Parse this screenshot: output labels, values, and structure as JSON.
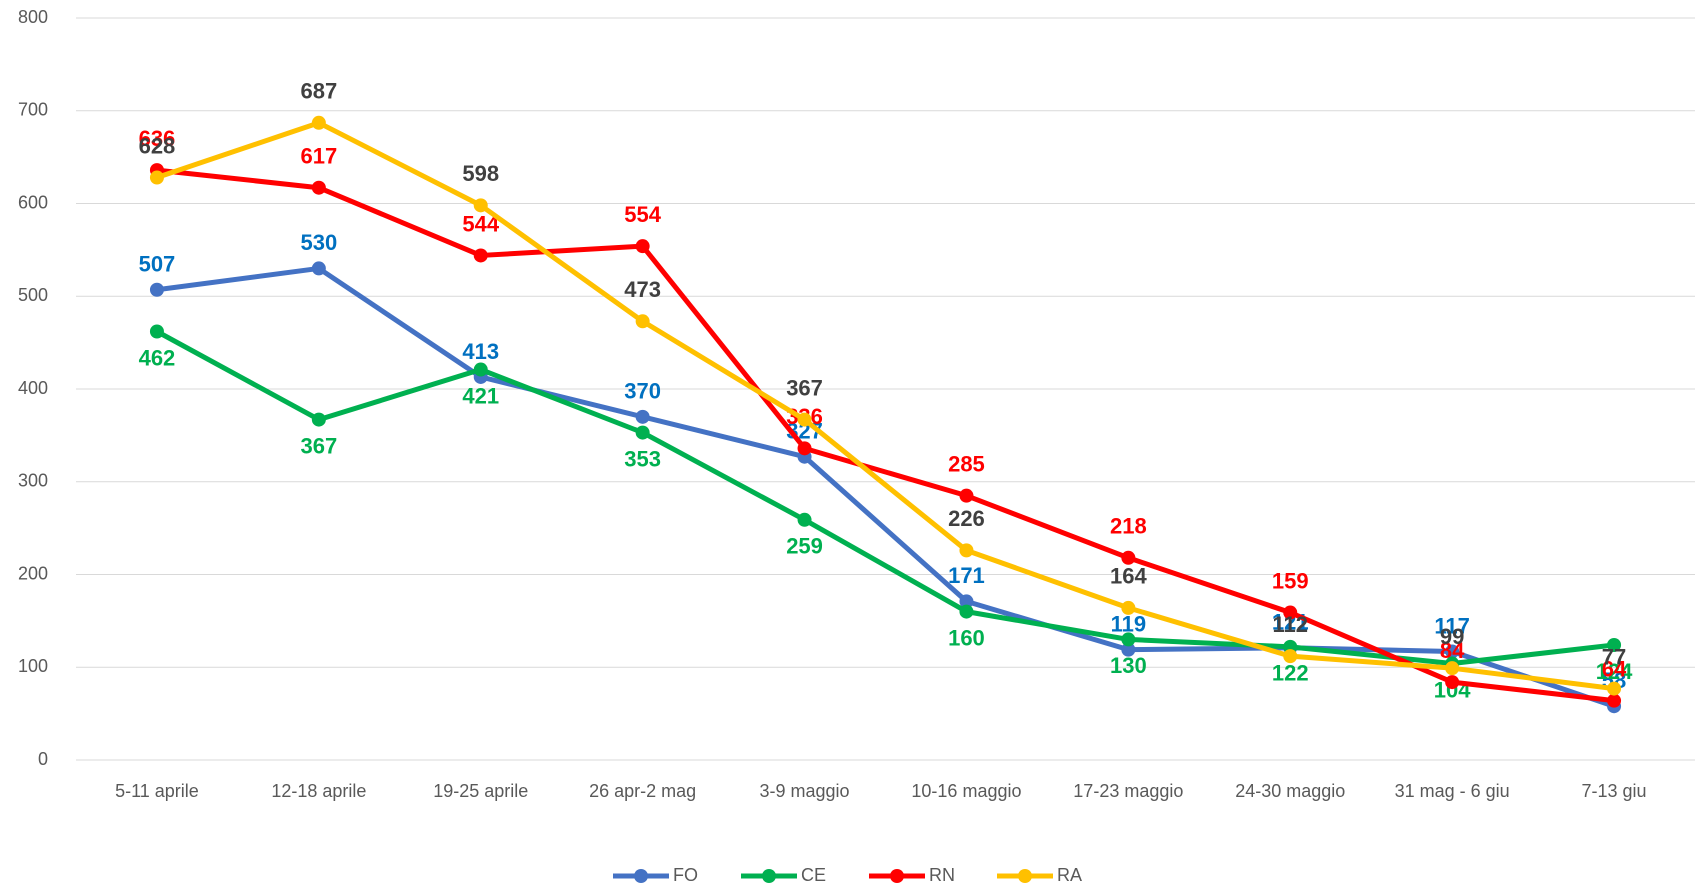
{
  "chart_data": {
    "type": "line",
    "categories": [
      "5-11 aprile",
      "12-18 aprile",
      "19-25 aprile",
      "26 apr-2 mag",
      "3-9 maggio",
      "10-16 maggio",
      "17-23 maggio",
      "24-30 maggio",
      "31 mag - 6 giu",
      "7-13 giu"
    ],
    "series": [
      {
        "name": "FO",
        "color": "#4472c4",
        "label_color": "#0070c0",
        "values": [
          507,
          530,
          413,
          370,
          327,
          171,
          119,
          121,
          117,
          58
        ]
      },
      {
        "name": "CE",
        "color": "#00b050",
        "label_color": "#00b050",
        "values": [
          462,
          367,
          421,
          353,
          259,
          160,
          130,
          122,
          104,
          124
        ]
      },
      {
        "name": "RN",
        "color": "#ff0000",
        "label_color": "#ff0000",
        "values": [
          636,
          617,
          544,
          554,
          336,
          285,
          218,
          159,
          84,
          64
        ]
      },
      {
        "name": "RA",
        "color": "#ffc000",
        "label_color": "#404040",
        "values": [
          628,
          687,
          598,
          473,
          367,
          226,
          164,
          112,
          99,
          77
        ]
      }
    ],
    "ylim": [
      0,
      800
    ],
    "yticks": [
      0,
      100,
      200,
      300,
      400,
      500,
      600,
      700,
      800
    ],
    "grid": true,
    "legend": "bottom"
  }
}
